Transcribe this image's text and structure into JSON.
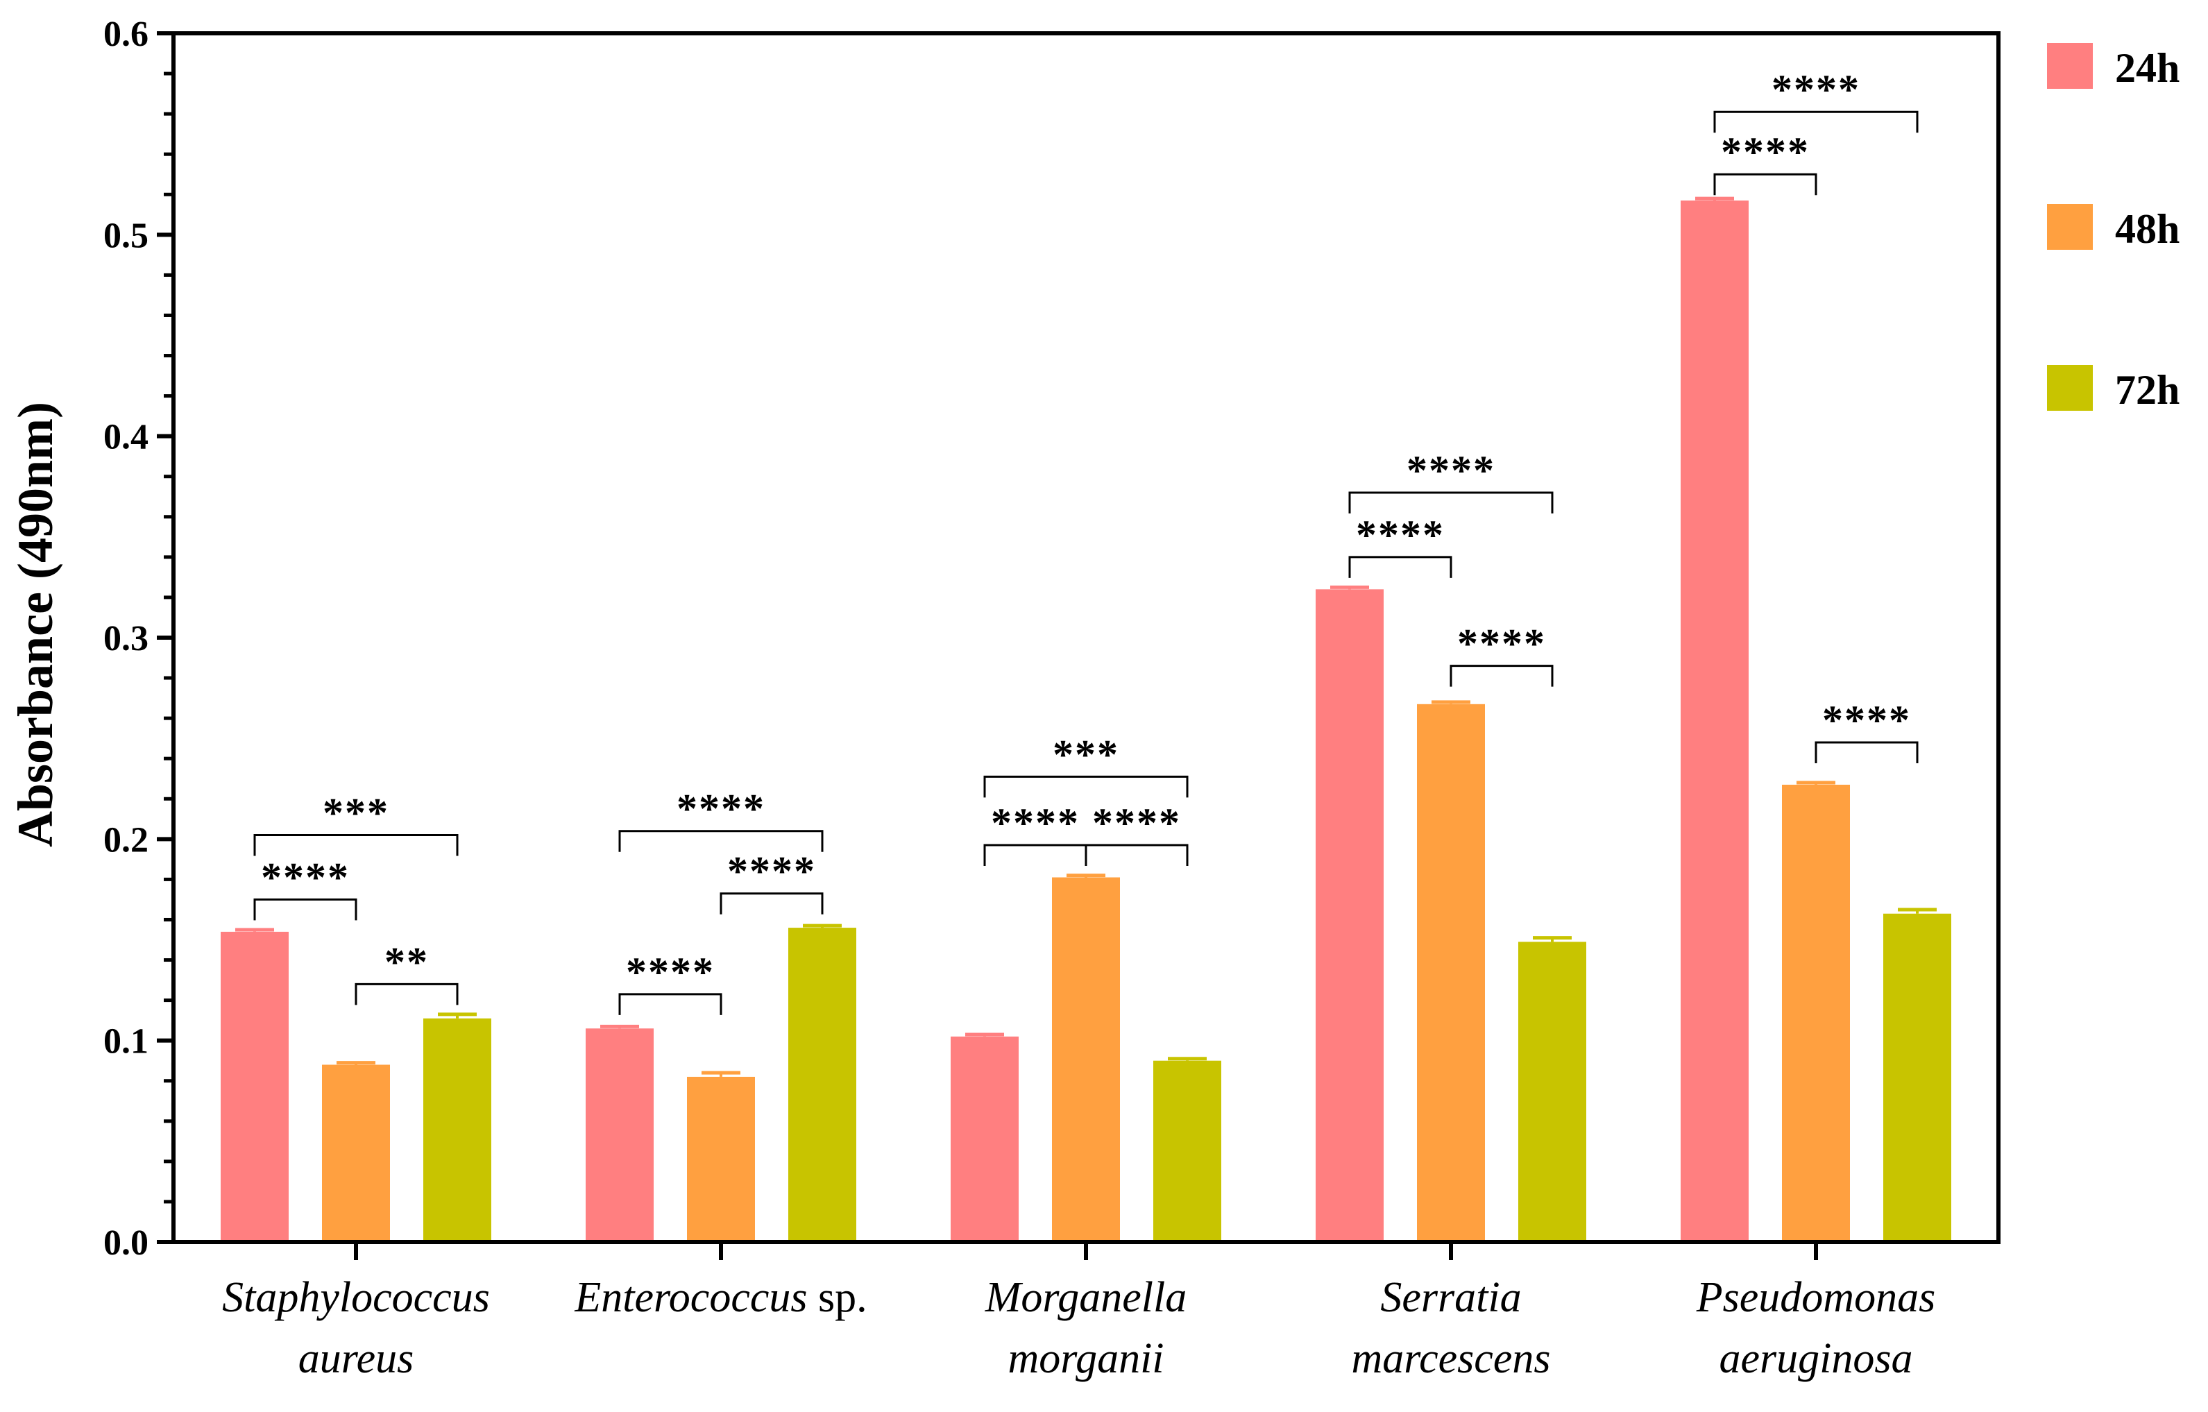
{
  "chart_data": {
    "type": "bar",
    "title": "",
    "xlabel": "",
    "ylabel": "Absorbance (490nm)",
    "ylim": [
      0,
      0.6
    ],
    "yticks": [
      "0.0",
      "0.1",
      "0.2",
      "0.3",
      "0.4",
      "0.5",
      "0.6"
    ],
    "grid": false,
    "legend_position": "right",
    "categories": [
      {
        "line1": "Staphylococcus",
        "line2": "aureus"
      },
      {
        "line1": "Enterococcus",
        "line1_suffix": " sp.",
        "line2": ""
      },
      {
        "line1": "Morganella",
        "line2": "morganii"
      },
      {
        "line1": "Serratia",
        "line2": "marcescens"
      },
      {
        "line1": "Pseudomonas",
        "line2": "aeruginosa"
      }
    ],
    "series": [
      {
        "name": "24h",
        "color": "#ff7f80",
        "values": [
          0.154,
          0.106,
          0.102,
          0.324,
          0.517
        ],
        "errors": [
          0.001,
          0.001,
          0.001,
          0.001,
          0.001
        ]
      },
      {
        "name": "48h",
        "color": "#ffa040",
        "values": [
          0.088,
          0.082,
          0.181,
          0.267,
          0.227
        ],
        "errors": [
          0.001,
          0.002,
          0.001,
          0.001,
          0.001
        ]
      },
      {
        "name": "72h",
        "color": "#c8c400",
        "values": [
          0.111,
          0.156,
          0.09,
          0.149,
          0.163
        ],
        "errors": [
          0.002,
          0.001,
          0.001,
          0.002,
          0.002
        ]
      }
    ],
    "significance": [
      {
        "category": 0,
        "from": 0,
        "to": 1,
        "level": 0.17,
        "label": "****"
      },
      {
        "category": 0,
        "from": 0,
        "to": 2,
        "level": 0.202,
        "label": "***"
      },
      {
        "category": 0,
        "from": 1,
        "to": 2,
        "level": 0.128,
        "label": "**"
      },
      {
        "category": 1,
        "from": 0,
        "to": 1,
        "level": 0.123,
        "label": "****"
      },
      {
        "category": 1,
        "from": 1,
        "to": 2,
        "level": 0.173,
        "label": "****"
      },
      {
        "category": 1,
        "from": 0,
        "to": 2,
        "level": 0.204,
        "label": "****"
      },
      {
        "category": 2,
        "from": 0,
        "to": 1,
        "level": 0.197,
        "label": "****"
      },
      {
        "category": 2,
        "from": 1,
        "to": 2,
        "level": 0.197,
        "label": "****"
      },
      {
        "category": 2,
        "from": 0,
        "to": 2,
        "level": 0.231,
        "label": "***"
      },
      {
        "category": 3,
        "from": 0,
        "to": 1,
        "level": 0.34,
        "label": "****"
      },
      {
        "category": 3,
        "from": 0,
        "to": 2,
        "level": 0.372,
        "label": "****"
      },
      {
        "category": 3,
        "from": 1,
        "to": 2,
        "level": 0.286,
        "label": "****"
      },
      {
        "category": 4,
        "from": 0,
        "to": 1,
        "level": 0.53,
        "label": "****"
      },
      {
        "category": 4,
        "from": 0,
        "to": 2,
        "level": 0.561,
        "label": "****"
      },
      {
        "category": 4,
        "from": 1,
        "to": 2,
        "level": 0.248,
        "label": "****"
      }
    ]
  }
}
